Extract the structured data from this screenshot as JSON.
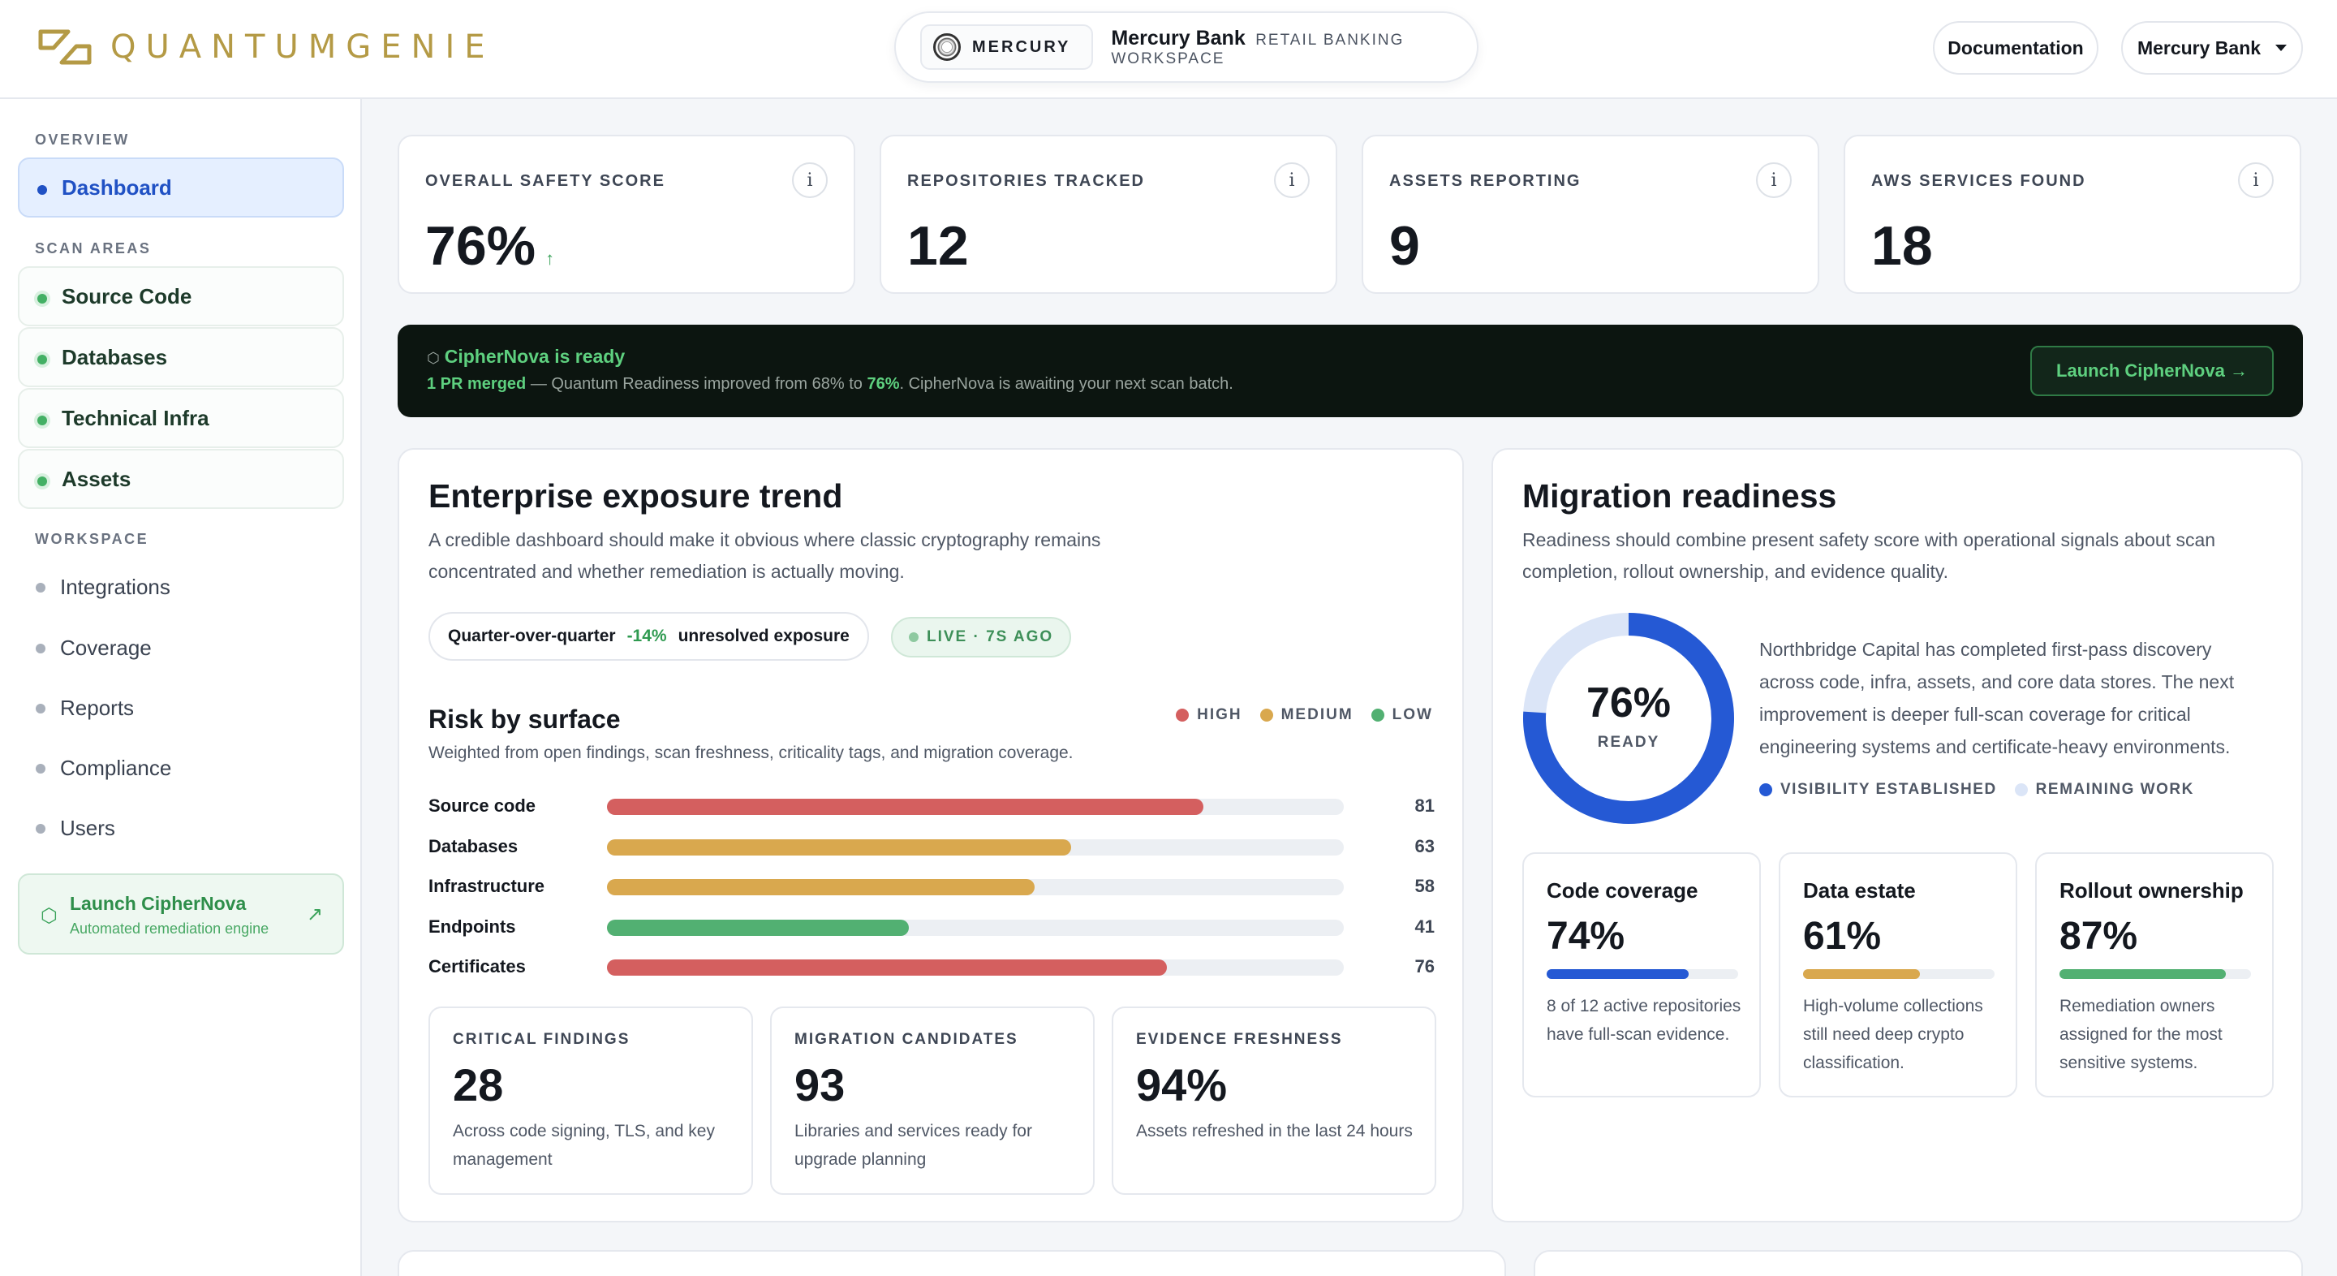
{
  "header": {
    "logo_text": "QUANTUMGENIE",
    "workspace_chip": "MERCURY",
    "workspace_name": "Mercury Bank",
    "workspace_sub": "RETAIL BANKING WORKSPACE",
    "documentation_label": "Documentation",
    "org_selector_label": "Mercury Bank"
  },
  "sidebar": {
    "overview_label": "OVERVIEW",
    "dashboard_label": "Dashboard",
    "scan_areas_label": "SCAN AREAS",
    "scan_items": [
      "Source Code",
      "Databases",
      "Technical Infra",
      "Assets"
    ],
    "workspace_label": "WORKSPACE",
    "workspace_items": [
      "Integrations",
      "Coverage",
      "Reports",
      "Compliance",
      "Users"
    ],
    "launch": {
      "title": "Launch CipherNova",
      "subtitle": "Automated remediation engine"
    }
  },
  "stats": [
    {
      "label": "OVERALL SAFETY SCORE",
      "value": "76%",
      "trend": "↑"
    },
    {
      "label": "REPOSITORIES TRACKED",
      "value": "12"
    },
    {
      "label": "ASSETS REPORTING",
      "value": "9"
    },
    {
      "label": "AWS SERVICES FOUND",
      "value": "18"
    }
  ],
  "banner": {
    "title": "CipherNova is ready",
    "pr_text": "1 PR merged",
    "message_pre": " — Quantum Readiness improved from 68% to ",
    "message_value": "76%",
    "message_post": ". CipherNova is awaiting your next scan batch.",
    "button_label": "Launch CipherNova →"
  },
  "trend": {
    "title": "Enterprise exposure trend",
    "description": "A credible dashboard should make it obvious where classic cryptography remains concentrated and whether remediation is actually moving.",
    "qoq_label": "Quarter-over-quarter",
    "qoq_value": "-14%",
    "qoq_suffix": "unresolved exposure",
    "live_label": "LIVE ·  7S AGO",
    "risk_title": "Risk by surface",
    "risk_subtitle": "Weighted from open findings, scan freshness, criticality tags, and migration coverage.",
    "legend": [
      {
        "label": "HIGH",
        "color": "#d45f5f"
      },
      {
        "label": "MEDIUM",
        "color": "#d9a84e"
      },
      {
        "label": "LOW",
        "color": "#52b072"
      }
    ],
    "bars": [
      {
        "name": "Source code",
        "value": 81,
        "color": "#d45f5f"
      },
      {
        "name": "Databases",
        "value": 63,
        "color": "#d9a84e"
      },
      {
        "name": "Infrastructure",
        "value": 58,
        "color": "#d9a84e"
      },
      {
        "name": "Endpoints",
        "value": 41,
        "color": "#52b072"
      },
      {
        "name": "Certificates",
        "value": 76,
        "color": "#d45f5f"
      }
    ],
    "mini_cards": [
      {
        "label": "CRITICAL FINDINGS",
        "value": "28",
        "desc": "Across code signing, TLS, and key management"
      },
      {
        "label": "MIGRATION CANDIDATES",
        "value": "93",
        "desc": "Libraries and services ready for upgrade planning"
      },
      {
        "label": "EVIDENCE FRESHNESS",
        "value": "94%",
        "desc": "Assets refreshed in the last 24 hours"
      }
    ]
  },
  "migration": {
    "title": "Migration readiness",
    "description": "Readiness should combine present safety score with operational signals about scan completion, rollout ownership, and evidence quality.",
    "donut_value": "76%",
    "donut_fraction": 0.76,
    "donut_label": "READY",
    "summary": "Northbridge Capital has completed first-pass discovery across code, infra, assets, and core data stores. The next improvement is deeper full-scan coverage for critical engineering systems and certificate-heavy environments.",
    "legend": [
      {
        "label": "VISIBILITY ESTABLISHED",
        "color": "#2559d4"
      },
      {
        "label": "REMAINING WORK",
        "color": "#dbe5f7"
      }
    ],
    "kpis": [
      {
        "title": "Code coverage",
        "value": "74%",
        "fraction": 0.74,
        "color": "#2559d4",
        "desc": "8 of 12 active repositories have full-scan evidence."
      },
      {
        "title": "Data estate",
        "value": "61%",
        "fraction": 0.61,
        "color": "#d9a84e",
        "desc": "High-volume collections still need deep crypto classification."
      },
      {
        "title": "Rollout ownership",
        "value": "87%",
        "fraction": 0.87,
        "color": "#52b072",
        "desc": "Remediation owners assigned for the most sensitive systems."
      }
    ]
  }
}
